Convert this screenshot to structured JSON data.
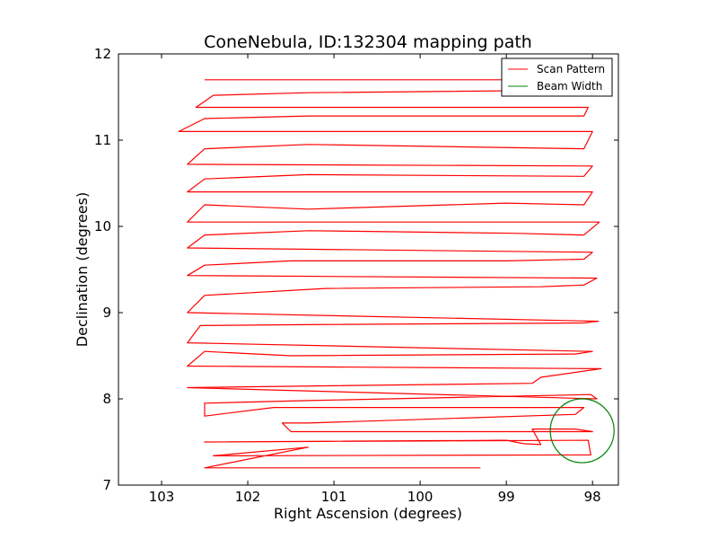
{
  "chart_data": {
    "type": "line",
    "title": "ConeNebula, ID:132304 mapping path",
    "xlabel": "Right Ascension (degrees)",
    "ylabel": "Declination (degrees)",
    "xlim": [
      103.5,
      97.7
    ],
    "ylim": [
      7,
      12
    ],
    "x_ticks": [
      "103",
      "102",
      "101",
      "100",
      "99",
      "98"
    ],
    "y_ticks": [
      "7",
      "8",
      "9",
      "10",
      "11",
      "12"
    ],
    "x_tick_values": [
      103,
      102,
      101,
      100,
      99,
      98
    ],
    "y_tick_values": [
      7,
      8,
      9,
      10,
      11,
      12
    ],
    "grid": false,
    "legend_position": "top-right",
    "legend": [
      {
        "label": "Scan Pattern",
        "color": "#ff0000"
      },
      {
        "label": "Beam Width",
        "color": "#008000"
      }
    ],
    "series": [
      {
        "name": "Scan Pattern",
        "color": "#ff0000",
        "points": [
          [
            99.3,
            7.2
          ],
          [
            102.5,
            7.2
          ],
          [
            101.3,
            7.44
          ],
          [
            102.4,
            7.34
          ],
          [
            98.02,
            7.35
          ],
          [
            98.05,
            7.52
          ],
          [
            102.5,
            7.5
          ],
          [
            99.0,
            7.52
          ],
          [
            98.8,
            7.48
          ],
          [
            98.6,
            7.47
          ],
          [
            98.7,
            7.65
          ],
          [
            98.2,
            7.65
          ],
          [
            98.0,
            7.62
          ],
          [
            101.5,
            7.62
          ],
          [
            101.6,
            7.72
          ],
          [
            101.3,
            7.72
          ],
          [
            98.2,
            7.82
          ],
          [
            98.1,
            7.9
          ],
          [
            101.7,
            7.9
          ],
          [
            102.5,
            7.8
          ],
          [
            102.5,
            7.95
          ],
          [
            101.3,
            7.98
          ],
          [
            98.02,
            8.05
          ],
          [
            97.95,
            8.0
          ],
          [
            102.7,
            8.13
          ],
          [
            101.2,
            8.15
          ],
          [
            98.7,
            8.18
          ],
          [
            98.6,
            8.25
          ],
          [
            97.9,
            8.35
          ],
          [
            102.7,
            8.38
          ],
          [
            102.5,
            8.55
          ],
          [
            101.5,
            8.5
          ],
          [
            98.2,
            8.52
          ],
          [
            98.0,
            8.55
          ],
          [
            102.7,
            8.65
          ],
          [
            102.55,
            8.85
          ],
          [
            101.35,
            8.86
          ],
          [
            98.1,
            8.88
          ],
          [
            97.93,
            8.9
          ],
          [
            102.7,
            9.0
          ],
          [
            102.5,
            9.2
          ],
          [
            101.1,
            9.28
          ],
          [
            98.6,
            9.3
          ],
          [
            98.1,
            9.32
          ],
          [
            97.95,
            9.4
          ],
          [
            102.7,
            9.43
          ],
          [
            102.5,
            9.55
          ],
          [
            101.5,
            9.6
          ],
          [
            99.0,
            9.6
          ],
          [
            98.1,
            9.62
          ],
          [
            98.0,
            9.7
          ],
          [
            102.7,
            9.75
          ],
          [
            102.5,
            9.9
          ],
          [
            101.3,
            9.95
          ],
          [
            98.9,
            9.92
          ],
          [
            98.1,
            9.9
          ],
          [
            97.92,
            10.05
          ],
          [
            102.7,
            10.05
          ],
          [
            102.5,
            10.25
          ],
          [
            101.3,
            10.2
          ],
          [
            99.0,
            10.27
          ],
          [
            98.1,
            10.25
          ],
          [
            98.0,
            10.4
          ],
          [
            102.7,
            10.4
          ],
          [
            102.5,
            10.55
          ],
          [
            101.3,
            10.6
          ],
          [
            98.1,
            10.58
          ],
          [
            98.0,
            10.7
          ],
          [
            102.7,
            10.72
          ],
          [
            102.5,
            10.9
          ],
          [
            101.3,
            10.95
          ],
          [
            98.1,
            10.9
          ],
          [
            98.0,
            11.1
          ],
          [
            102.8,
            11.1
          ],
          [
            102.5,
            11.25
          ],
          [
            101.3,
            11.28
          ],
          [
            98.1,
            11.28
          ],
          [
            98.05,
            11.38
          ],
          [
            102.6,
            11.38
          ],
          [
            102.4,
            11.52
          ],
          [
            101.3,
            11.55
          ],
          [
            98.1,
            11.58
          ],
          [
            98.05,
            11.7
          ],
          [
            102.5,
            11.7
          ]
        ]
      }
    ],
    "beam": {
      "label": "Beam Width",
      "color": "#008000",
      "center": [
        98.12,
        7.63
      ],
      "radius_deg": 0.37
    }
  }
}
